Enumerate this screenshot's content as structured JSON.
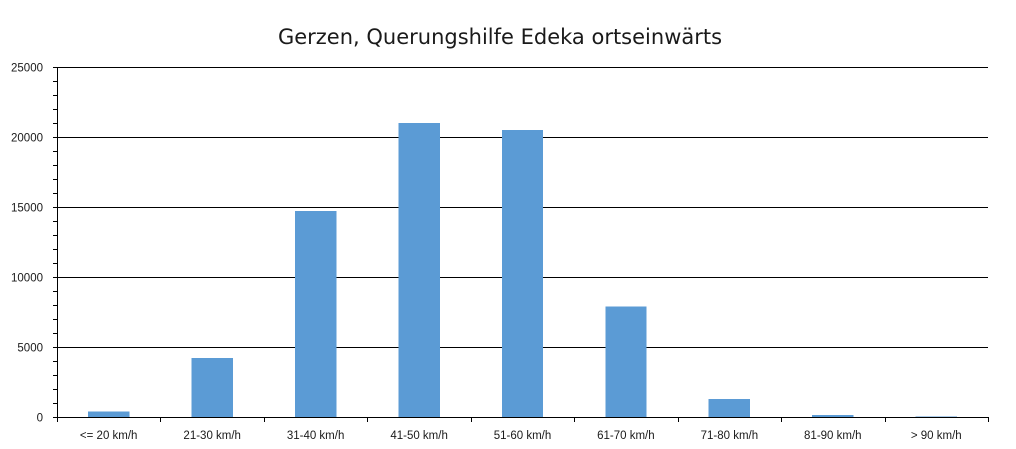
{
  "chart_data": {
    "type": "bar",
    "title": "Gerzen, Querungshilfe Edeka ortseinwärts",
    "xlabel": "",
    "ylabel": "",
    "categories": [
      "<= 20 km/h",
      "21-30 km/h",
      "31-40 km/h",
      "41-50 km/h",
      "51-60 km/h",
      "61-70 km/h",
      "71-80 km/h",
      "81-90 km/h",
      "> 90 km/h"
    ],
    "values": [
      400,
      4200,
      14700,
      21000,
      20500,
      7900,
      1300,
      150,
      20
    ],
    "ylim": [
      0,
      25000
    ],
    "yticks": [
      0,
      5000,
      10000,
      15000,
      20000,
      25000
    ],
    "grid": true,
    "legend": "none",
    "bar_color": "#5b9bd5"
  }
}
